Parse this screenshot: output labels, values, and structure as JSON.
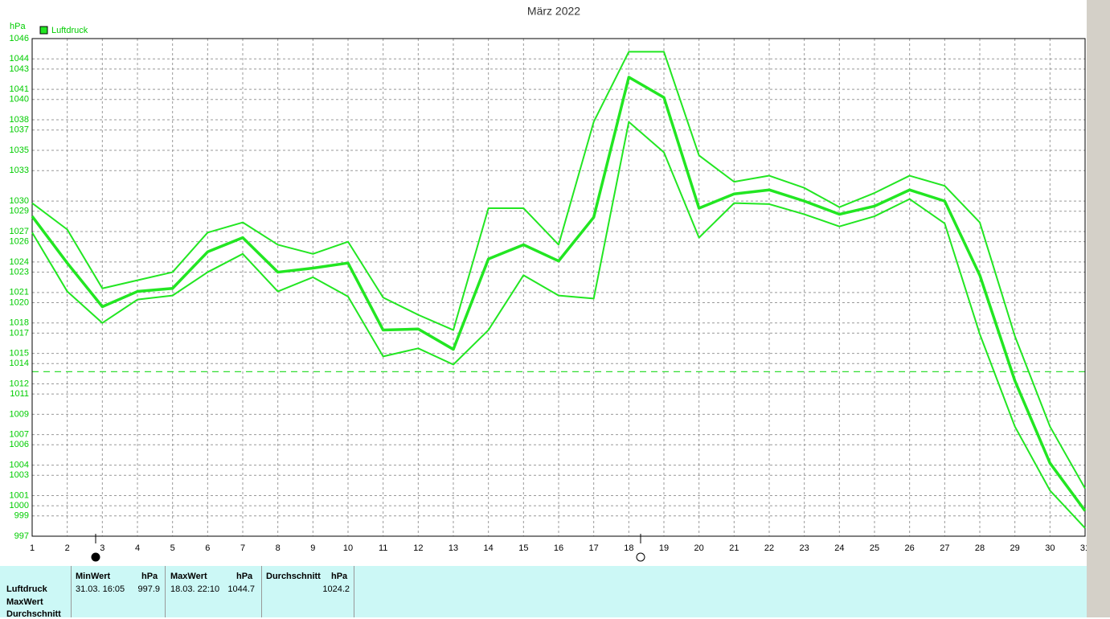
{
  "chart_data": {
    "type": "line",
    "title": "März 2022",
    "y_label": "hPa",
    "x": [
      1,
      2,
      3,
      4,
      5,
      6,
      7,
      8,
      9,
      10,
      11,
      12,
      13,
      14,
      15,
      16,
      17,
      18,
      19,
      20,
      21,
      22,
      23,
      24,
      25,
      26,
      27,
      28,
      29,
      30,
      31
    ],
    "xlim": [
      1,
      31
    ],
    "xticks": [
      1,
      2,
      3,
      4,
      5,
      6,
      7,
      8,
      9,
      10,
      11,
      12,
      13,
      14,
      15,
      16,
      17,
      18,
      19,
      20,
      21,
      22,
      23,
      24,
      25,
      26,
      27,
      28,
      29,
      30,
      31
    ],
    "ylim": [
      997,
      1046
    ],
    "yticks": [
      997,
      999,
      1000,
      1001,
      1003,
      1004,
      1006,
      1007,
      1009,
      1011,
      1012,
      1014,
      1015,
      1017,
      1018,
      1020,
      1021,
      1023,
      1024,
      1026,
      1027,
      1029,
      1030,
      1033,
      1035,
      1037,
      1038,
      1040,
      1041,
      1043,
      1044,
      1046
    ],
    "grid": true,
    "legend": "top-left",
    "reference_line": 1013.2,
    "reference_color": "#33dd33",
    "series": [
      {
        "name": "Luftdruck",
        "color": "#22e622",
        "values": [
          1028.5,
          1023.9,
          1019.6,
          1021.1,
          1021.4,
          1025.0,
          1026.4,
          1023.0,
          1023.4,
          1023.9,
          1017.3,
          1017.4,
          1015.4,
          1024.3,
          1025.7,
          1024.1,
          1028.4,
          1042.2,
          1040.2,
          1029.3,
          1030.7,
          1031.1,
          1030.0,
          1028.7,
          1029.5,
          1031.1,
          1030.0,
          1022.7,
          1012.3,
          1004.2,
          999.5
        ]
      },
      {
        "color": "#22e622",
        "values": [
          1029.8,
          1027.2,
          1021.4,
          1022.2,
          1023.0,
          1026.9,
          1027.9,
          1025.7,
          1024.8,
          1026.0,
          1020.5,
          1018.8,
          1017.3,
          1029.3,
          1029.3,
          1025.7,
          1037.8,
          1044.7,
          1044.7,
          1034.5,
          1031.9,
          1032.5,
          1031.3,
          1029.4,
          1030.8,
          1032.5,
          1031.5,
          1027.9,
          1016.7,
          1007.8,
          1001.7
        ]
      },
      {
        "color": "#22e622",
        "values": [
          1026.9,
          1021.1,
          1018.0,
          1020.3,
          1020.7,
          1023.0,
          1024.8,
          1021.1,
          1022.5,
          1020.6,
          1014.7,
          1015.5,
          1013.9,
          1017.3,
          1022.7,
          1020.7,
          1020.4,
          1037.8,
          1034.8,
          1026.4,
          1029.8,
          1029.7,
          1028.7,
          1027.5,
          1028.5,
          1030.2,
          1027.8,
          1016.9,
          1007.8,
          1001.5,
          997.8
        ]
      }
    ]
  },
  "summary": {
    "row_labels": [
      "Luftdruck",
      "MaxWert",
      "Durchschnitt"
    ],
    "columns": [
      {
        "title": "MinWert",
        "unit": "hPa",
        "time": "31.03. 16:05",
        "value": 997.9
      },
      {
        "title": "MaxWert",
        "unit": "hPa",
        "time": "18.03. 22:10",
        "value": 1044.7
      },
      {
        "title": "Durchschnitt",
        "unit": "hPa",
        "value": 1024.2
      }
    ]
  }
}
